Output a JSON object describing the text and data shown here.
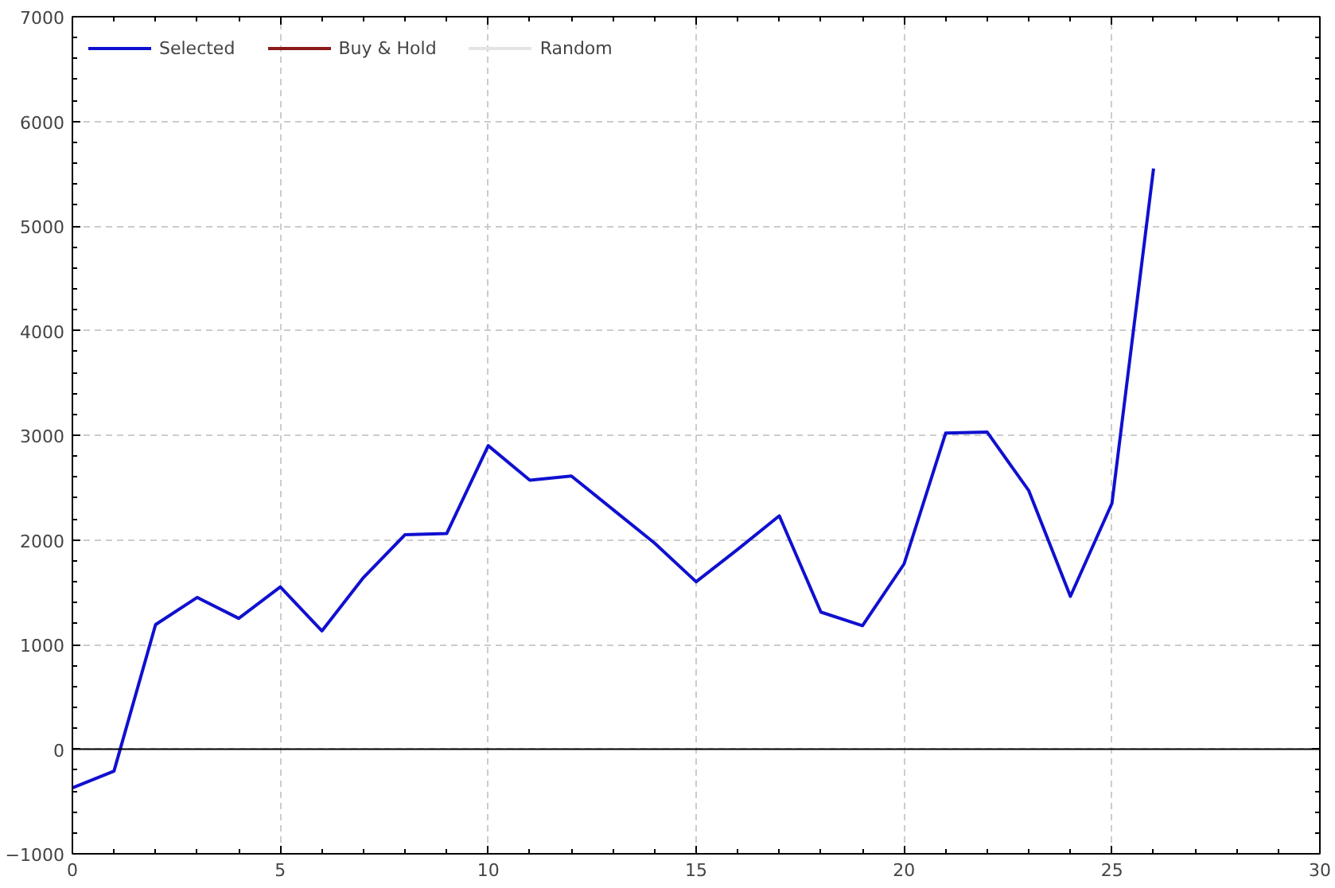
{
  "chart_data": {
    "type": "line",
    "x": [
      0,
      1,
      2,
      3,
      4,
      5,
      6,
      7,
      8,
      9,
      10,
      11,
      12,
      13,
      14,
      15,
      16,
      17,
      18,
      19,
      20,
      21,
      22,
      23,
      24,
      25,
      26
    ],
    "series": [
      {
        "name": "Selected",
        "color": "#1010d0",
        "values": [
          -370,
          -210,
          1190,
          1450,
          1250,
          1550,
          1130,
          1640,
          2050,
          2060,
          2900,
          2570,
          2610,
          2290,
          1970,
          1600,
          1910,
          2230,
          1310,
          1180,
          1770,
          3020,
          3030,
          2470,
          1460,
          2350,
          5550
        ]
      },
      {
        "name": "Buy & Hold",
        "color": "#8b1a1a",
        "values": [
          null,
          null,
          null,
          null,
          null,
          null,
          null,
          null,
          null,
          null,
          null,
          null,
          null,
          null,
          null,
          null,
          null,
          null,
          null,
          null,
          null,
          null,
          null,
          null,
          null,
          null,
          null
        ]
      },
      {
        "name": "Random",
        "color": "#e4e4e4",
        "values": [
          null,
          null,
          null,
          null,
          null,
          null,
          null,
          null,
          null,
          null,
          null,
          null,
          null,
          null,
          null,
          null,
          null,
          null,
          null,
          null,
          null,
          null,
          null,
          null,
          null,
          null,
          null
        ]
      }
    ],
    "xlim": [
      0,
      30
    ],
    "xticks": [
      0,
      5,
      10,
      15,
      20,
      25,
      30
    ],
    "ylim": [
      -1000,
      7000
    ],
    "yticks": [
      -1000,
      0,
      1000,
      2000,
      3000,
      4000,
      5000,
      6000,
      7000
    ],
    "ref_lines": [
      {
        "axis": "y",
        "value": 0,
        "color": "#000000",
        "line_style": "solid"
      }
    ],
    "grid": true,
    "legend": "top left",
    "line_style": "solid",
    "marker": "none"
  }
}
